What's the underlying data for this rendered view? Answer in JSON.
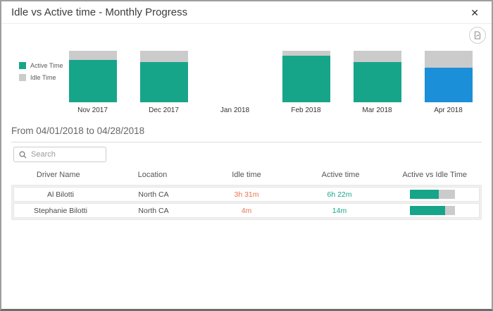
{
  "dialog": {
    "title": "Idle vs Active time - Monthly Progress",
    "close_glyph": "✕"
  },
  "toolbar": {
    "export_icon": "export-report-icon"
  },
  "chart_data": {
    "type": "bar",
    "stacked": true,
    "normalized_to_100": true,
    "title": "Idle vs Active time - Monthly Progress",
    "xlabel": "",
    "ylabel": "",
    "grid": false,
    "legend_position": "left",
    "legend": [
      {
        "label": "Active Time",
        "color": "#17a58a"
      },
      {
        "label": "Idle Time",
        "color": "#cbcbcb"
      }
    ],
    "categories": [
      "Nov 2017",
      "Dec 2017",
      "Jan 2018",
      "Feb 2018",
      "Mar 2018",
      "Apr 2018"
    ],
    "series": [
      {
        "name": "Active Time",
        "values": [
          82,
          78,
          0,
          91,
          78,
          67
        ]
      },
      {
        "name": "Idle Time",
        "values": [
          18,
          22,
          0,
          9,
          22,
          33
        ]
      }
    ],
    "selected_category": "Apr 2018",
    "colors": {
      "active": "#17a58a",
      "idle": "#cbcbcb",
      "selected_active": "#1b8fd8"
    }
  },
  "period": {
    "label": "From 04/01/2018 to 04/28/2018"
  },
  "search": {
    "placeholder": "Search"
  },
  "table": {
    "columns": [
      "Driver Name",
      "Location",
      "Idle time",
      "Active time",
      "Active vs Idle Time"
    ],
    "value_colors": {
      "idle_text": "#e8744f",
      "active_text": "#17a58a",
      "bar_active": "#17a58a",
      "bar_idle": "#cbcbcb"
    },
    "rows": [
      {
        "driver": "Al Bilotti",
        "location": "North CA",
        "idle": "3h 31m",
        "active": "6h 22m",
        "active_pct": 64
      },
      {
        "driver": "Stephanie Bilotti",
        "location": "North CA",
        "idle": "4m",
        "active": "14m",
        "active_pct": 78
      }
    ]
  }
}
